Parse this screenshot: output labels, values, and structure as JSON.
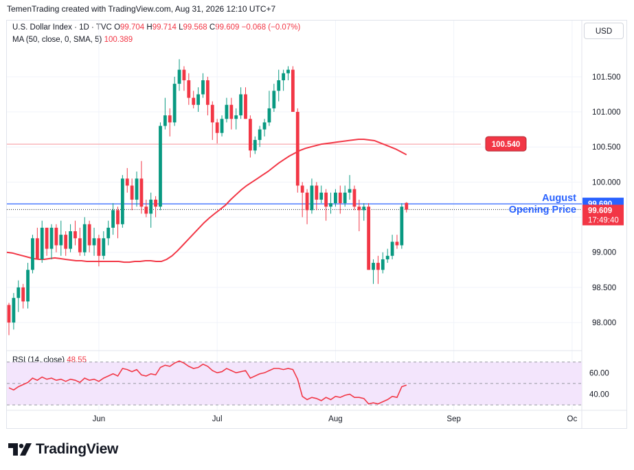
{
  "header": {
    "attribution": "TemenTrading created with TradingView.com, Aug 31, 2026 12:10 UTC+7"
  },
  "legend": {
    "symbol": "U.S. Dollar Index · 1D · TVC",
    "o_label": "O",
    "o": "99.704",
    "h_label": "H",
    "h": "99.714",
    "l_label": "L",
    "l": "99.568",
    "c_label": "C",
    "c": "99.609",
    "change": "−0.068 (−0.07%)",
    "ma_label": "MA (50, close, 0, SMA, 5)",
    "ma_value": "100.389",
    "rsi_label": "RSI (14, close)",
    "rsi_value": "48.55"
  },
  "currency_button": "USD",
  "brand": {
    "name": "TradingView"
  },
  "colors": {
    "up": "#089981",
    "down": "#f23645",
    "ma": "#f23645",
    "blue": "#2962ff",
    "rsi_band": "#f3e5fc"
  },
  "chart_data": {
    "type": "candlestick",
    "ylim": [
      97.6,
      102.3
    ],
    "yticks": [
      98.0,
      98.5,
      99.0,
      99.5,
      100.0,
      100.5,
      101.0,
      101.5
    ],
    "ytick_labels": [
      "98.000",
      "98.500",
      "99.000",
      "",
      "100.000",
      "100.500",
      "101.000",
      "101.500"
    ],
    "xtick_labels": [
      "Jun",
      "Jul",
      "Aug",
      "Sep",
      "Oc"
    ],
    "xtick_index": [
      19,
      44,
      69,
      94,
      119
    ],
    "candles": [
      [
        98.25,
        98.28,
        97.82,
        98.0
      ],
      [
        98.0,
        98.42,
        97.9,
        98.35
      ],
      [
        98.35,
        98.6,
        98.15,
        98.5
      ],
      [
        98.5,
        98.55,
        98.2,
        98.3
      ],
      [
        98.3,
        98.85,
        98.2,
        98.75
      ],
      [
        98.75,
        99.25,
        98.7,
        99.2
      ],
      [
        99.2,
        99.35,
        98.9,
        98.9
      ],
      [
        98.9,
        99.45,
        98.85,
        99.35
      ],
      [
        99.35,
        99.35,
        98.95,
        99.05
      ],
      [
        99.05,
        99.4,
        98.9,
        99.35
      ],
      [
        99.35,
        99.4,
        99.0,
        99.1
      ],
      [
        99.1,
        99.45,
        98.95,
        99.25
      ],
      [
        99.25,
        99.3,
        98.95,
        99.05
      ],
      [
        99.05,
        99.4,
        99.0,
        99.3
      ],
      [
        99.3,
        99.45,
        99.1,
        99.2
      ],
      [
        99.2,
        99.35,
        98.95,
        99.0
      ],
      [
        99.0,
        99.5,
        98.95,
        99.4
      ],
      [
        99.4,
        99.45,
        99.0,
        99.1
      ],
      [
        99.1,
        99.35,
        98.95,
        99.2
      ],
      [
        99.2,
        99.25,
        98.8,
        98.95
      ],
      [
        98.95,
        99.3,
        98.9,
        99.2
      ],
      [
        99.2,
        99.45,
        99.1,
        99.35
      ],
      [
        99.35,
        99.7,
        99.25,
        99.6
      ],
      [
        99.6,
        99.65,
        99.2,
        99.4
      ],
      [
        99.4,
        100.1,
        99.35,
        100.05
      ],
      [
        100.05,
        100.2,
        99.85,
        99.95
      ],
      [
        99.95,
        100.05,
        99.6,
        99.75
      ],
      [
        99.75,
        100.15,
        99.65,
        100.05
      ],
      [
        100.05,
        100.3,
        99.55,
        99.65
      ],
      [
        99.65,
        99.75,
        99.5,
        99.55
      ],
      [
        99.55,
        99.85,
        99.35,
        99.75
      ],
      [
        99.75,
        99.8,
        99.5,
        99.65
      ],
      [
        99.65,
        100.85,
        99.6,
        100.8
      ],
      [
        100.8,
        101.2,
        100.75,
        100.95
      ],
      [
        100.95,
        101.05,
        100.65,
        100.85
      ],
      [
        100.85,
        101.5,
        100.8,
        101.4
      ],
      [
        101.4,
        101.75,
        101.3,
        101.6
      ],
      [
        101.6,
        101.65,
        101.3,
        101.45
      ],
      [
        101.45,
        101.55,
        101.1,
        101.2
      ],
      [
        101.2,
        101.3,
        101.05,
        101.1
      ],
      [
        101.1,
        101.35,
        101.0,
        101.25
      ],
      [
        101.25,
        101.55,
        101.2,
        101.45
      ],
      [
        101.45,
        101.5,
        100.95,
        101.1
      ],
      [
        101.1,
        101.15,
        100.6,
        100.85
      ],
      [
        100.85,
        100.9,
        100.55,
        100.7
      ],
      [
        100.7,
        100.95,
        100.65,
        100.9
      ],
      [
        100.9,
        101.2,
        100.85,
        101.1
      ],
      [
        101.1,
        101.2,
        100.75,
        100.9
      ],
      [
        100.9,
        101.05,
        100.75,
        100.95
      ],
      [
        100.95,
        101.35,
        100.9,
        101.25
      ],
      [
        101.25,
        101.35,
        100.9,
        100.9
      ],
      [
        100.9,
        100.95,
        100.35,
        100.45
      ],
      [
        100.45,
        100.65,
        100.4,
        100.6
      ],
      [
        100.6,
        100.8,
        100.5,
        100.75
      ],
      [
        100.75,
        100.9,
        100.65,
        100.85
      ],
      [
        100.85,
        101.3,
        100.8,
        101.05
      ],
      [
        101.05,
        101.4,
        101.0,
        101.3
      ],
      [
        101.3,
        101.6,
        101.15,
        101.45
      ],
      [
        101.45,
        101.6,
        101.3,
        101.55
      ],
      [
        101.55,
        101.65,
        101.45,
        101.6
      ],
      [
        101.6,
        101.65,
        101.0,
        101.0
      ],
      [
        101.0,
        101.05,
        99.85,
        99.95
      ],
      [
        99.95,
        100.0,
        99.5,
        99.85
      ],
      [
        99.85,
        99.9,
        99.4,
        99.6
      ],
      [
        99.6,
        100.05,
        99.55,
        99.95
      ],
      [
        99.95,
        100.0,
        99.6,
        99.75
      ],
      [
        99.75,
        99.95,
        99.7,
        99.85
      ],
      [
        99.85,
        99.9,
        99.45,
        99.65
      ],
      [
        99.65,
        99.85,
        99.55,
        99.7
      ],
      [
        99.7,
        99.9,
        99.65,
        99.85
      ],
      [
        99.85,
        99.95,
        99.55,
        99.7
      ],
      [
        99.7,
        99.95,
        99.65,
        99.85
      ],
      [
        99.85,
        100.1,
        99.75,
        99.9
      ],
      [
        99.9,
        99.95,
        99.6,
        99.65
      ],
      [
        99.65,
        99.75,
        99.3,
        99.6
      ],
      [
        99.6,
        99.7,
        99.45,
        99.65
      ],
      [
        99.65,
        99.7,
        98.75,
        98.75
      ],
      [
        98.75,
        98.9,
        98.55,
        98.85
      ],
      [
        98.85,
        98.95,
        98.55,
        98.75
      ],
      [
        98.75,
        99.0,
        98.7,
        98.9
      ],
      [
        98.9,
        99.05,
        98.85,
        98.95
      ],
      [
        98.95,
        99.25,
        98.9,
        99.15
      ],
      [
        99.15,
        99.25,
        99.05,
        99.1
      ],
      [
        99.1,
        99.7,
        99.05,
        99.65
      ],
      [
        99.704,
        99.714,
        99.568,
        99.609
      ]
    ],
    "ma": [
      99.0,
      98.99,
      98.97,
      98.95,
      98.93,
      98.91,
      98.9,
      98.9,
      98.91,
      98.92,
      98.91,
      98.9,
      98.89,
      98.88,
      98.88,
      98.87,
      98.87,
      98.87,
      98.87,
      98.87,
      98.87,
      98.87,
      98.86,
      98.86,
      98.87,
      98.87,
      98.88,
      98.88,
      98.87,
      98.87,
      98.9,
      98.95,
      99.02,
      99.1,
      99.18,
      99.26,
      99.34,
      99.42,
      99.49,
      99.55,
      99.61,
      99.67,
      99.75,
      99.82,
      99.89,
      99.95,
      100.0,
      100.05,
      100.1,
      100.15,
      100.21,
      100.27,
      100.32,
      100.37,
      100.41,
      100.45,
      100.48,
      100.5,
      100.52,
      100.54,
      100.55,
      100.56,
      100.57,
      100.58,
      100.59,
      100.6,
      100.61,
      100.61,
      100.6,
      100.59,
      100.56,
      100.53,
      100.5,
      100.47,
      100.43,
      100.39
    ],
    "ma_start_index": 9,
    "rsi": [
      46,
      44,
      47,
      49,
      51,
      55,
      53,
      56,
      54,
      55,
      53,
      54,
      52,
      54,
      53,
      51,
      55,
      53,
      54,
      52,
      55,
      57,
      59,
      57,
      64,
      63,
      61,
      63,
      58,
      57,
      59,
      58,
      65,
      67,
      66,
      69,
      71,
      69,
      66,
      64,
      65,
      68,
      66,
      62,
      60,
      61,
      64,
      62,
      60,
      61,
      62,
      55,
      57,
      59,
      60,
      62,
      64,
      64,
      63,
      64,
      63,
      54,
      38,
      35,
      37,
      36,
      34,
      37,
      35,
      38,
      37,
      39,
      40,
      37,
      37,
      36,
      31,
      32,
      31,
      33,
      35,
      38,
      37,
      47,
      48.55
    ],
    "rsi_ticks": [
      40,
      60
    ],
    "rsi_tick_labels": [
      "40.00",
      "60.00"
    ],
    "rsi_band": [
      30,
      70
    ],
    "rsi_mid": 50,
    "rsi_ylim": [
      25,
      80
    ],
    "horizontal_lines": [
      {
        "value": 99.69,
        "label": "August",
        "label2": "Opening Price",
        "price_tag": "99.690",
        "color": "#2962ff"
      },
      {
        "value": 100.54,
        "price_tag": "100.540",
        "color": "#f23645"
      }
    ],
    "last_price": {
      "value": 99.609,
      "label": "99.609",
      "countdown": "17:49:40"
    }
  }
}
